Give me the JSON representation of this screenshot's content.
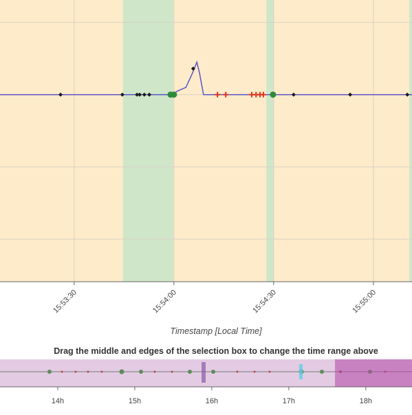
{
  "chart_data": {
    "type": "line",
    "x_label": "Timestamp [Local Time]",
    "background": "#fdebc9",
    "band_color": "#cfe6c9",
    "bands": [
      [
        57224.7,
        57239.8
      ],
      [
        57267.8,
        57270.0
      ],
      [
        57310.8,
        57311.6
      ]
    ],
    "xlim": [
      57187.7,
      57311.6
    ],
    "xticks": [
      {
        "value": 57210,
        "label": "15:53:30"
      },
      {
        "value": 57240,
        "label": "15:54:00"
      },
      {
        "value": 57270,
        "label": "15:54:30"
      },
      {
        "value": 57300,
        "label": "15:55:00"
      }
    ],
    "ylim": [
      0.41,
      4.31
    ],
    "yticks": [
      1,
      2,
      3,
      4
    ],
    "grid": true,
    "series": [
      {
        "color": "#5a55c8",
        "marker": "none",
        "x": [
          57187.7,
          57239.4,
          57241.1,
          57243.6,
          57245.6,
          57246.9,
          57247.7,
          57248.9,
          57250.8,
          57311.6
        ],
        "values": [
          3,
          3,
          3.05,
          3.1,
          3.3,
          3.45,
          3.3,
          3.0,
          3,
          3
        ]
      },
      {
        "color": "#1a1a1a",
        "marker": "diamond",
        "x": [
          57205.9,
          57224.5,
          57228.9,
          57229.7,
          57231.1,
          57232.6,
          57245.8,
          57276.0,
          57293.0,
          57310.2
        ],
        "values": [
          3,
          3,
          3,
          3,
          3,
          3,
          3.36,
          3,
          3,
          3
        ]
      },
      {
        "color": "#e0321e",
        "marker": "cross",
        "x": [
          57253.1,
          57255.6,
          57263.4,
          57264.7,
          57265.9,
          57266.9
        ],
        "values": [
          3,
          3,
          3,
          3,
          3,
          3
        ]
      },
      {
        "color": "#2e8b3a",
        "marker": "circle",
        "x": [
          57239.0,
          57240.0,
          57269.8
        ],
        "values": [
          3,
          3,
          3
        ]
      }
    ]
  },
  "navigator": {
    "title": "Drag the middle and edges of the selection box to change the time range above",
    "xlim": [
      13.25,
      18.6
    ],
    "selection": [
      17.6,
      18.6
    ],
    "xticks": [
      {
        "value": 14,
        "label": "14h"
      },
      {
        "value": 15,
        "label": "15h"
      },
      {
        "value": 16,
        "label": "16h"
      },
      {
        "value": 17,
        "label": "17h"
      },
      {
        "value": 18,
        "label": "18h"
      }
    ]
  }
}
